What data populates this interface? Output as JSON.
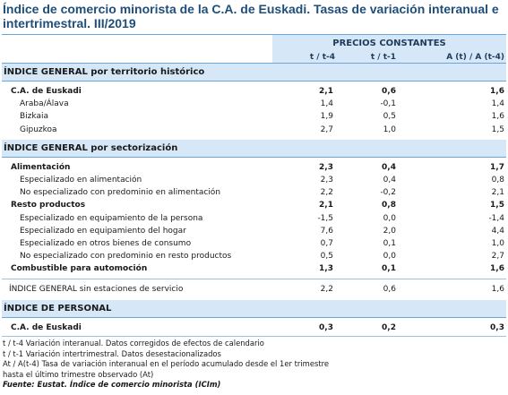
{
  "title": "Índice de comercio minorista de la C.A. de Euskadi. Tasas de variación interanual e intertrimestral. III/2019",
  "header": {
    "group": "PRECIOS CONSTANTES",
    "col1": "t / t-4",
    "col2": "t / t-1",
    "col3": "A (t) / A (t-4)"
  },
  "sections": [
    {
      "title": "ÍNDICE GENERAL por territorio histórico",
      "rows": [
        {
          "label": "C.A. de Euskadi",
          "v1": "2,1",
          "v2": "0,6",
          "v3": "1,6",
          "bold": true,
          "sub": false
        },
        {
          "label": "Araba/Álava",
          "v1": "1,4",
          "v2": "-0,1",
          "v3": "1,4",
          "bold": false,
          "sub": true
        },
        {
          "label": "Bizkaia",
          "v1": "1,9",
          "v2": "0,5",
          "v3": "1,6",
          "bold": false,
          "sub": true
        },
        {
          "label": "Gipuzkoa",
          "v1": "2,7",
          "v2": "1,0",
          "v3": "1,5",
          "bold": false,
          "sub": true
        }
      ]
    },
    {
      "title": "ÍNDICE GENERAL por sectorización",
      "rows": [
        {
          "label": "Alimentación",
          "v1": "2,3",
          "v2": "0,4",
          "v3": "1,7",
          "bold": true,
          "sub": false
        },
        {
          "label": "Especializado en alimentación",
          "v1": "2,3",
          "v2": "0,4",
          "v3": "0,8",
          "bold": false,
          "sub": true
        },
        {
          "label": "No especializado con predominio en alimentación",
          "v1": "2,2",
          "v2": "-0,2",
          "v3": "2,1",
          "bold": false,
          "sub": true
        },
        {
          "label": "Resto productos",
          "v1": "2,1",
          "v2": "0,8",
          "v3": "1,5",
          "bold": true,
          "sub": false
        },
        {
          "label": "Especializado en equipamiento de la persona",
          "v1": "-1,5",
          "v2": "0,0",
          "v3": "-1,4",
          "bold": false,
          "sub": true
        },
        {
          "label": "Especializado en equipamiento del hogar",
          "v1": "7,6",
          "v2": "2,0",
          "v3": "4,4",
          "bold": false,
          "sub": true
        },
        {
          "label": "Especializado en otros bienes de consumo",
          "v1": "0,7",
          "v2": "0,1",
          "v3": "1,0",
          "bold": false,
          "sub": true
        },
        {
          "label": "No especializado con predominio en resto productos",
          "v1": "0,5",
          "v2": "0,0",
          "v3": "2,7",
          "bold": false,
          "sub": true
        },
        {
          "label": "Combustible para automoción",
          "v1": "1,3",
          "v2": "0,1",
          "v3": "1,6",
          "bold": true,
          "sub": false
        }
      ]
    }
  ],
  "general_sin_estaciones": {
    "label": "ÍNDICE GENERAL sin estaciones de servicio",
    "v1": "2,2",
    "v2": "0,6",
    "v3": "1,6"
  },
  "personal": {
    "title": "ÍNDICE DE PERSONAL",
    "row": {
      "label": "C.A. de Euskadi",
      "v1": "0,3",
      "v2": "0,2",
      "v3": "0,3"
    }
  },
  "notes": [
    "t / t-4 Variación interanual. Datos corregidos de efectos de calendario",
    "t / t-1 Variación intertrimestral. Datos desestacionalizados",
    "At / A(t-4) Tasa de variación interanual en el período acumulado desde el 1er trimestre",
    "hasta el último trimestre observado (At)"
  ],
  "source": "Fuente: Eustat. Índice de comercio minorista (ICIm)"
}
